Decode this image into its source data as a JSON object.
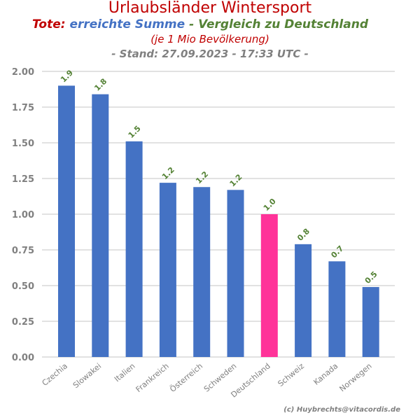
{
  "header": {
    "title": "Urlaubsländer Wintersport",
    "subtitle_part1": "Tote:",
    "subtitle_part2": "erreichte Summe",
    "subtitle_part3": " - Vergleich zu Deutschland",
    "subtitle2": "(je 1 Mio Bevölkerung)",
    "subtitle3": "- Stand: 27.09.2023 - 17:33 UTC -"
  },
  "footer": {
    "copyright": "(c) Huybrechts@vitacordis.de"
  },
  "colors": {
    "title": "#c00000",
    "subtitle2": "#c00000",
    "summe": "#4472c4",
    "vergleich": "#548235",
    "stand": "#808080",
    "bar": "#4472c4",
    "highlight": "#ff3399",
    "data_label": "#548235",
    "tick_label": "#808080",
    "grid": "#d9d9d9"
  },
  "chart_data": {
    "type": "bar",
    "title": "Urlaubsländer Wintersport",
    "xlabel": "",
    "ylabel": "",
    "categories": [
      "Czechia",
      "Slowakei",
      "Italien",
      "Frankreich",
      "Österreich",
      "Schweden",
      "Deutschland",
      "Schweiz",
      "Kanada",
      "Norwegen"
    ],
    "values": [
      1.9,
      1.84,
      1.51,
      1.22,
      1.19,
      1.17,
      1.0,
      0.79,
      0.67,
      0.49
    ],
    "data_labels": [
      "1.9",
      "1.8",
      "1.5",
      "1.2",
      "1.2",
      "1.2",
      "1.0",
      "0.8",
      "0.7",
      "0.5"
    ],
    "highlight_category": "Deutschland",
    "ylim": [
      0,
      2.0
    ],
    "yticks": [
      0,
      0.25,
      0.5,
      0.75,
      1.0,
      1.25,
      1.5,
      1.75,
      2.0
    ],
    "ytick_labels": [
      "0.00",
      "0.25",
      "0.50",
      "0.75",
      "1.00",
      "1.25",
      "1.50",
      "1.75",
      "2.00"
    ],
    "grid": true,
    "legend": "none"
  }
}
